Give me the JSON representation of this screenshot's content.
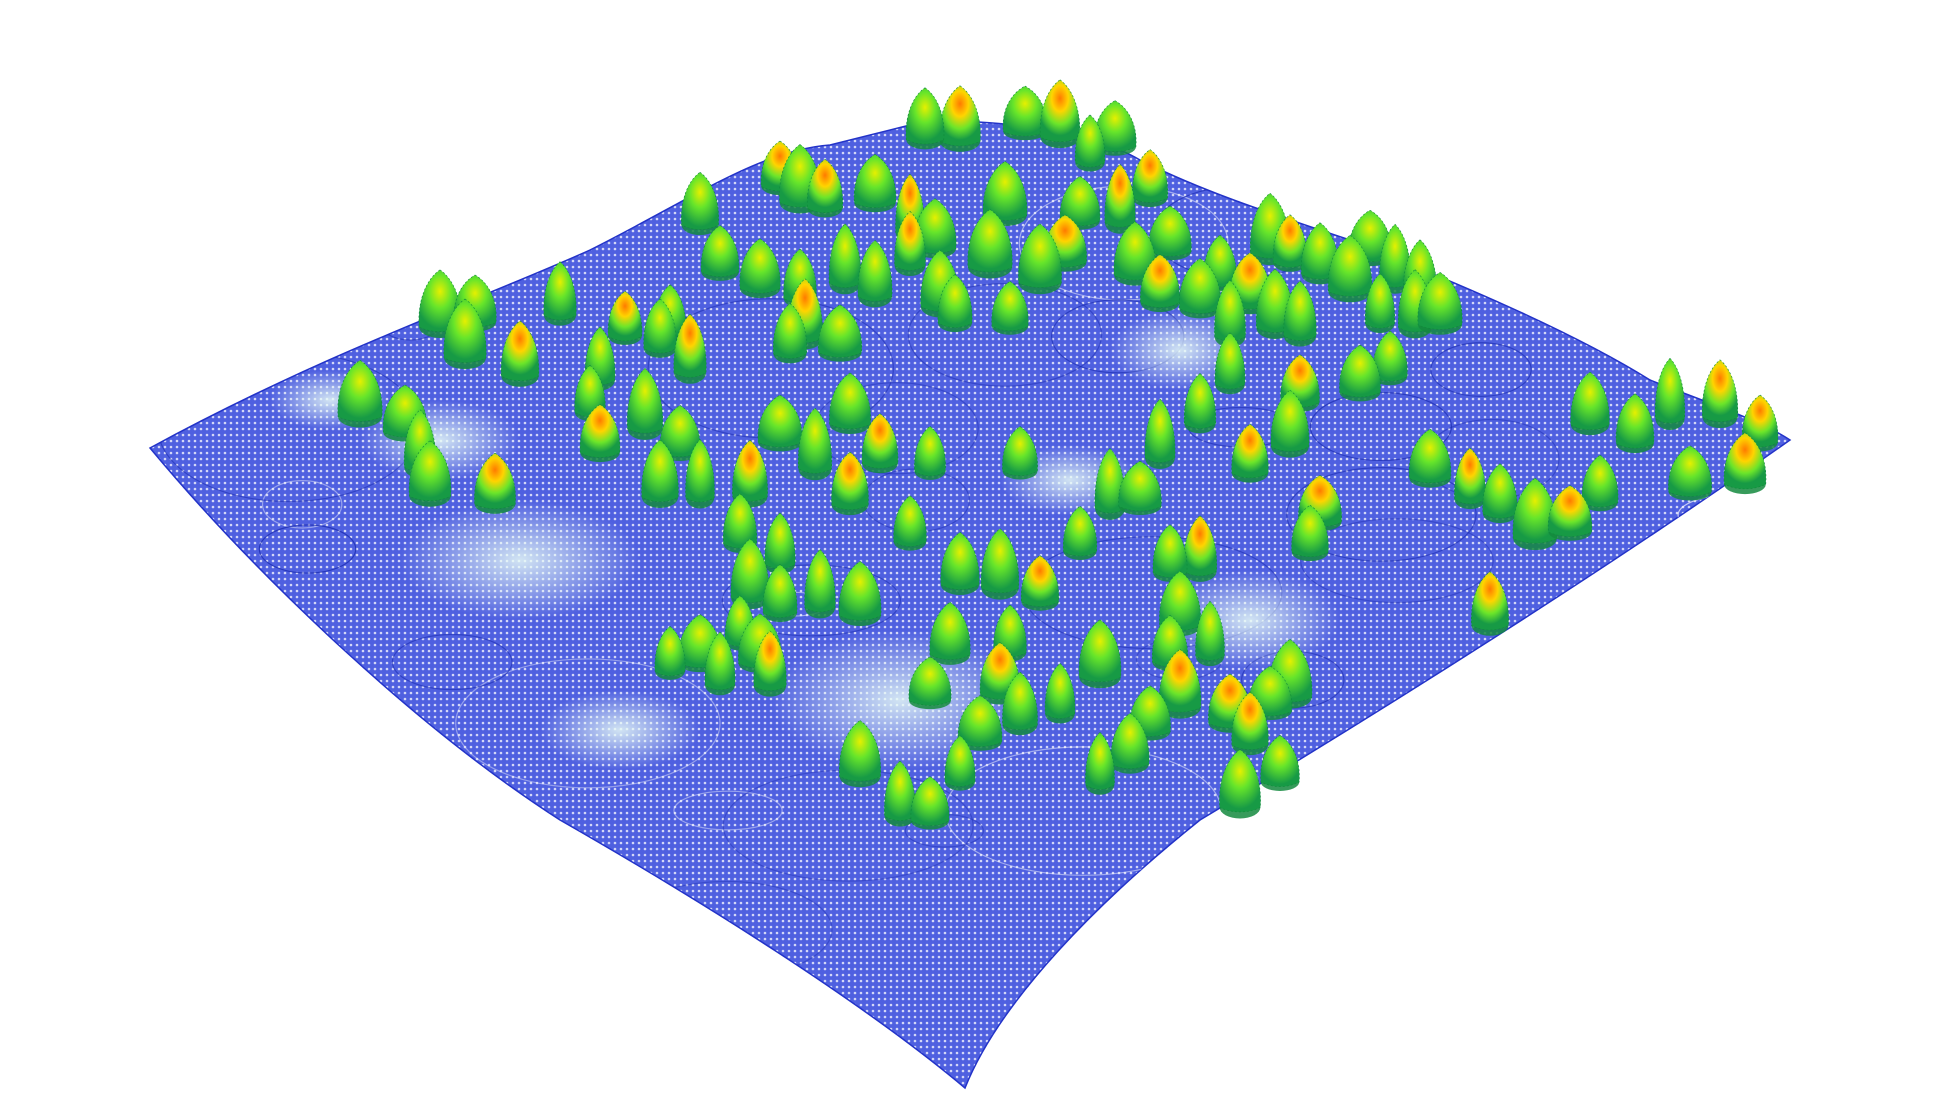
{
  "scene": {
    "kind": "lidar-point-cloud-render",
    "description_visible": "",
    "background_color": "#ffffff",
    "terrain_colors": {
      "low": "#1f2fd6",
      "mid": "#6b7fe8",
      "contour": "#ffffff",
      "pale": "#d6f0ee"
    },
    "canopy_colors": {
      "base": "#1aa84a",
      "mid": "#5de82a",
      "upper": "#c8f000",
      "high": "#ffd000",
      "top": "#ff6a00"
    },
    "tree_count_approx": 120
  }
}
